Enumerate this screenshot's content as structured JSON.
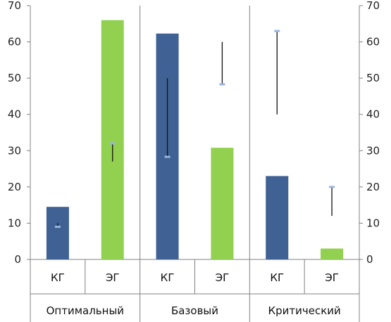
{
  "chart_data": {
    "type": "bar",
    "groups": [
      "Оптимальный",
      "Базовый",
      "Критический"
    ],
    "categories": [
      "КГ",
      "ЭГ",
      "КГ",
      "ЭГ",
      "КГ",
      "ЭГ"
    ],
    "series": [
      {
        "values": [
          14.5,
          66,
          62.3,
          30.8,
          23,
          3
        ]
      }
    ],
    "colors": [
      "#3f6194",
      "#92d050",
      "#3f6194",
      "#92d050",
      "#3f6194",
      "#92d050"
    ],
    "range_lines": [
      [
        8.9,
        10
      ],
      [
        27,
        32
      ],
      [
        28,
        50
      ],
      [
        48,
        60
      ],
      [
        40,
        63
      ],
      [
        12,
        20
      ]
    ],
    "range_markers": [
      9,
      32,
      28.3,
      48.3,
      63,
      20
    ],
    "y_ticks": [
      0,
      10,
      20,
      30,
      40,
      50,
      60,
      70
    ],
    "ylim": [
      0,
      70
    ],
    "grid": false,
    "secondary_y_axis": true
  }
}
